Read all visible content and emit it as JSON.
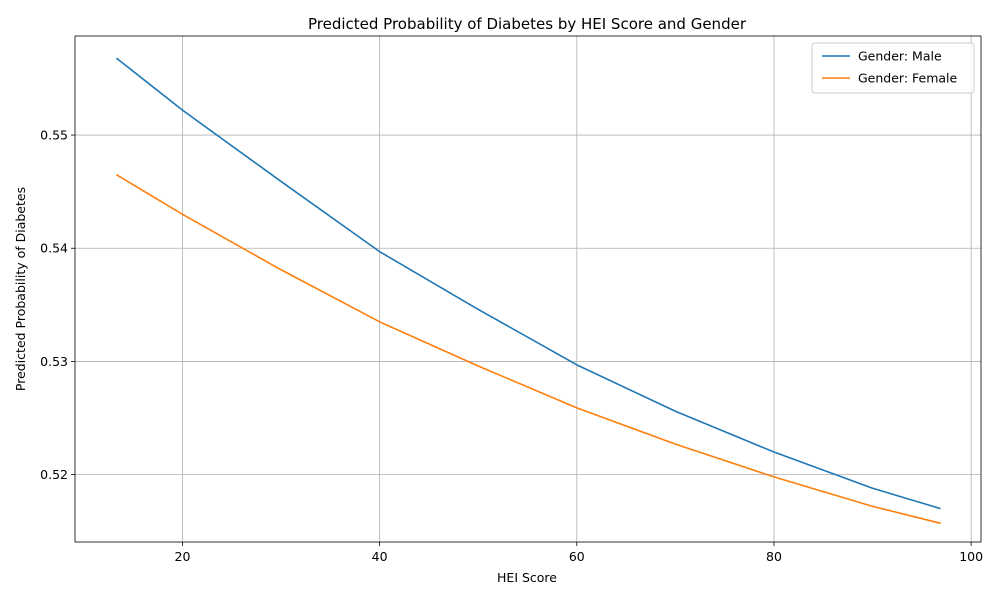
{
  "chart_data": {
    "type": "line",
    "title": "Predicted Probability of Diabetes by HEI Score and Gender",
    "xlabel": "HEI Score",
    "ylabel": "Predicted Probability of Diabetes",
    "xlim": [
      9.1,
      101.0
    ],
    "ylim": [
      0.51405,
      0.55875
    ],
    "xticks": [
      20,
      40,
      60,
      80,
      100
    ],
    "xtick_labels": [
      "20",
      "40",
      "60",
      "80",
      "100"
    ],
    "yticks": [
      0.52,
      0.53,
      0.54,
      0.55
    ],
    "ytick_labels": [
      "0.52",
      "0.53",
      "0.54",
      "0.55"
    ],
    "grid": true,
    "legend_position": "top-right",
    "series": [
      {
        "name": "Gender: Male",
        "color": "#1f77b4",
        "x": [
          13.3,
          20,
          30,
          40,
          50,
          60,
          70,
          80,
          90,
          96.9
        ],
        "y": [
          0.5568,
          0.5522,
          0.5459,
          0.5397,
          0.5346,
          0.5297,
          0.5256,
          0.522,
          0.5188,
          0.517
        ]
      },
      {
        "name": "Gender: Female",
        "color": "#ff7f0e",
        "x": [
          13.3,
          20,
          30,
          40,
          50,
          60,
          70,
          80,
          90,
          96.9
        ],
        "y": [
          0.5465,
          0.543,
          0.5381,
          0.5335,
          0.5296,
          0.5259,
          0.5227,
          0.5198,
          0.5172,
          0.5157
        ]
      }
    ]
  }
}
